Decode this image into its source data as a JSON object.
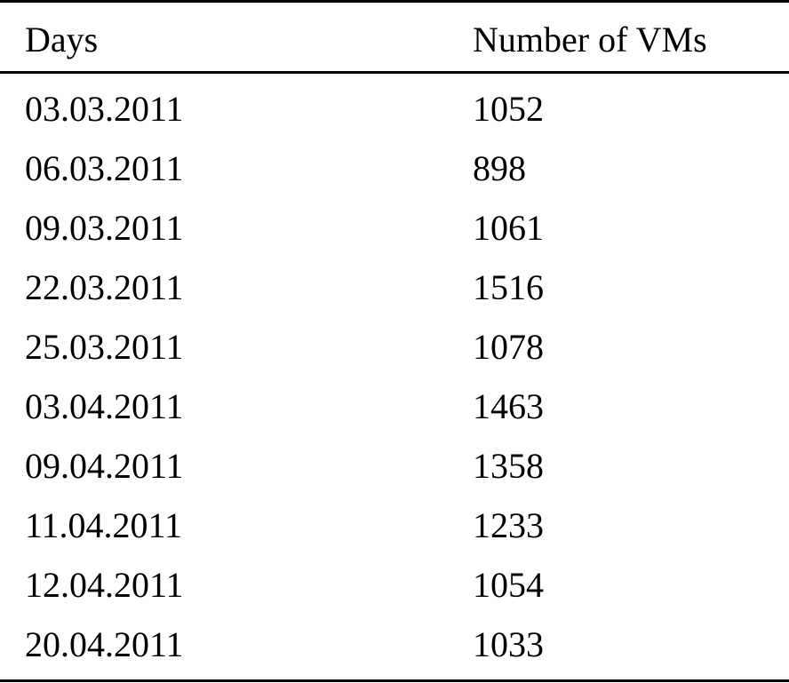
{
  "table": {
    "headers": {
      "days": "Days",
      "vms": "Number of VMs"
    },
    "rows": [
      {
        "day": "03.03.2011",
        "vms": "1052"
      },
      {
        "day": "06.03.2011",
        "vms": "898"
      },
      {
        "day": "09.03.2011",
        "vms": "1061"
      },
      {
        "day": "22.03.2011",
        "vms": "1516"
      },
      {
        "day": "25.03.2011",
        "vms": "1078"
      },
      {
        "day": "03.04.2011",
        "vms": "1463"
      },
      {
        "day": "09.04.2011",
        "vms": "1358"
      },
      {
        "day": "11.04.2011",
        "vms": "1233"
      },
      {
        "day": "12.04.2011",
        "vms": "1054"
      },
      {
        "day": "20.04.2011",
        "vms": "1033"
      }
    ]
  }
}
